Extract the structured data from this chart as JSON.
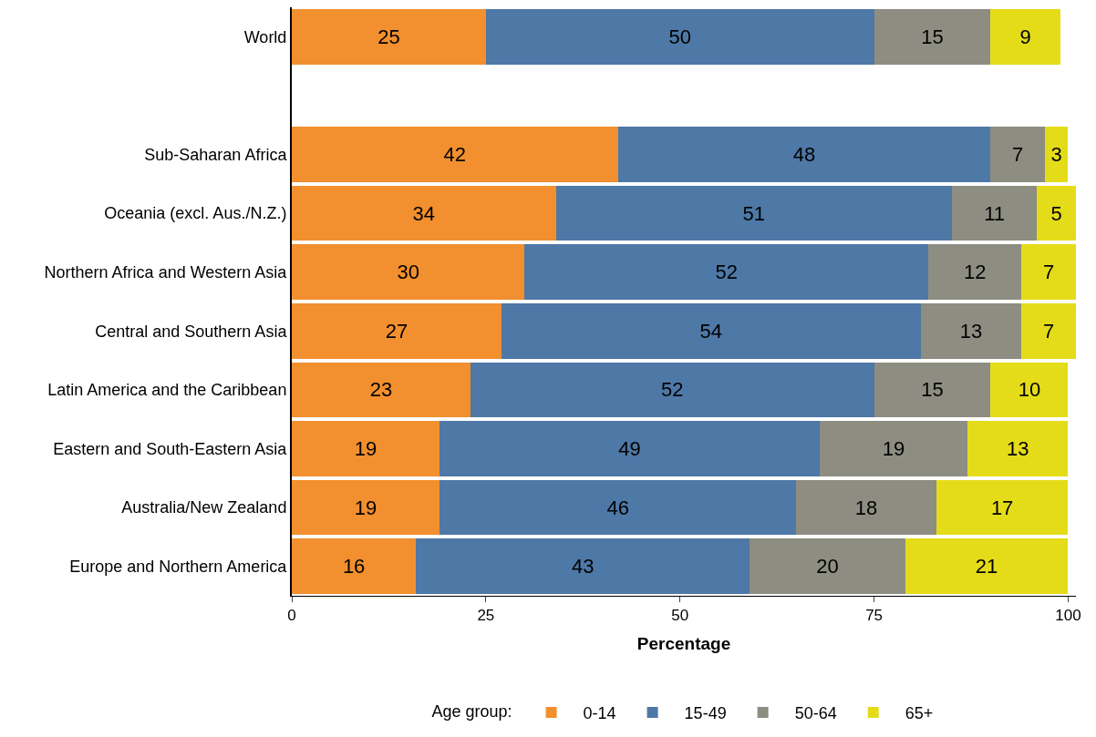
{
  "chart_data": {
    "type": "bar",
    "orientation": "horizontal",
    "stacked": true,
    "data_labels": true,
    "xlabel": "Percentage",
    "legend_title": "Age group:",
    "legend": "bottom",
    "categories": [
      "World",
      null,
      "Sub-Saharan Africa",
      "Oceania (excl. Aus./N.Z.)",
      "Northern Africa and Western Asia",
      "Central and Southern Asia",
      "Latin America and the Caribbean",
      "Eastern and South-Eastern Asia",
      "Australia/New Zealand",
      "Europe and Northern America"
    ],
    "xlim": [
      0,
      101
    ],
    "xticks": [
      0,
      25,
      50,
      75,
      100
    ],
    "series": [
      {
        "name": "0-14",
        "color": "#f28f2e",
        "values": [
          25,
          null,
          42,
          34,
          30,
          27,
          23,
          19,
          19,
          16
        ]
      },
      {
        "name": "15-49",
        "color": "#4e78a6",
        "values": [
          50,
          null,
          48,
          51,
          52,
          54,
          52,
          49,
          46,
          43
        ]
      },
      {
        "name": "50-64",
        "color": "#8d8d82",
        "values": [
          15,
          null,
          7,
          11,
          12,
          13,
          15,
          19,
          18,
          20
        ]
      },
      {
        "name": "65+",
        "color": "#e4dc19",
        "values": [
          9,
          null,
          3,
          5,
          7,
          7,
          10,
          13,
          17,
          21
        ]
      }
    ]
  }
}
